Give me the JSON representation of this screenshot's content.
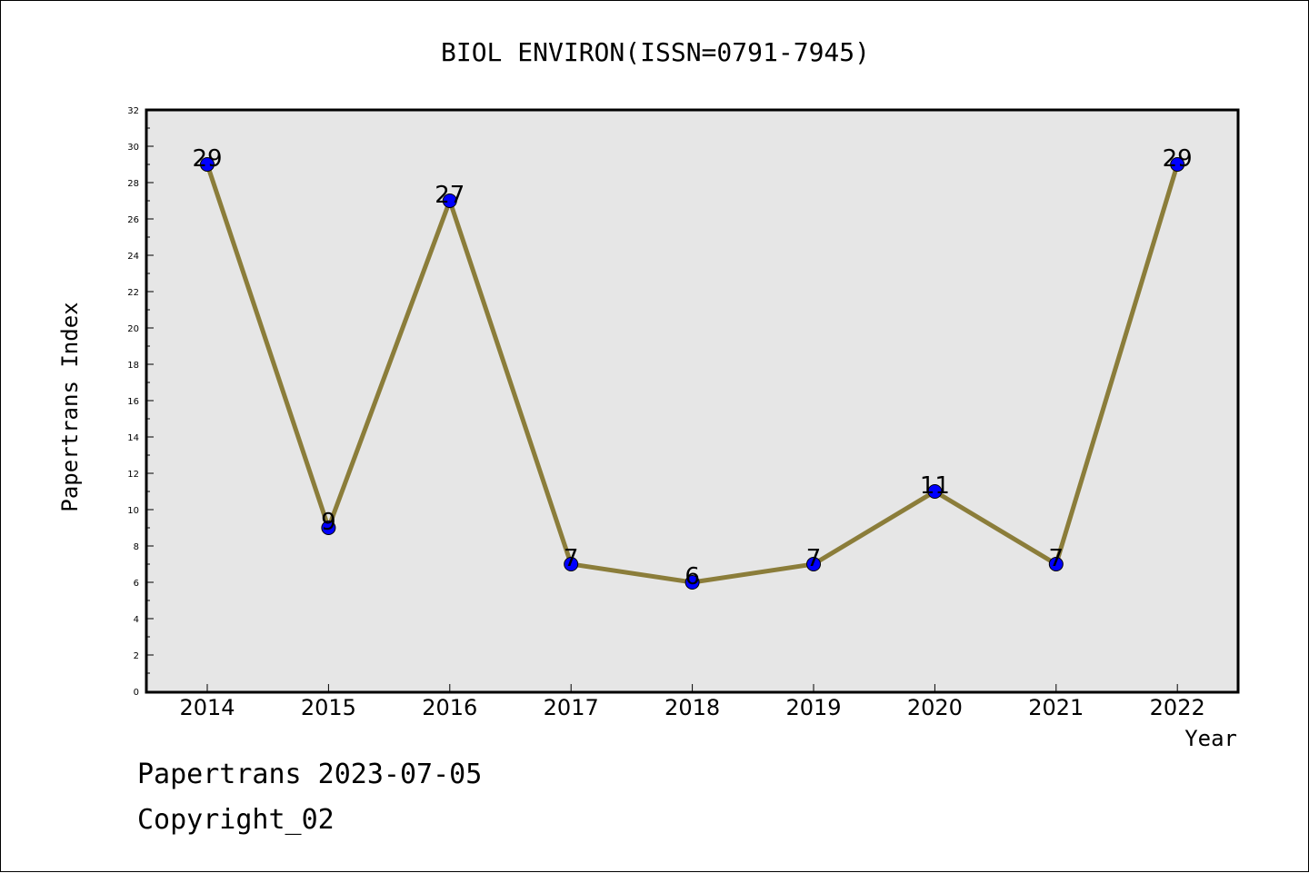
{
  "chart_data": {
    "type": "line",
    "title": "BIOL ENVIRON(ISSN=0791-7945)",
    "xlabel": "Year",
    "ylabel": "Papertrans Index",
    "categories": [
      "2014",
      "2015",
      "2016",
      "2017",
      "2018",
      "2019",
      "2020",
      "2021",
      "2022"
    ],
    "values": [
      29,
      9,
      27,
      7,
      6,
      7,
      11,
      7,
      29
    ],
    "ylim": [
      0,
      32
    ],
    "yticks": [
      0,
      2,
      4,
      6,
      8,
      10,
      12,
      14,
      16,
      18,
      20,
      22,
      24,
      26,
      28,
      30,
      32
    ],
    "grid": false,
    "line_color": "#8b7d3a",
    "marker_color": "#0000ff",
    "plot_background": "#e6e6e6"
  },
  "footer": {
    "line1": "Papertrans 2023-07-05",
    "line2": "Copyright_02"
  }
}
